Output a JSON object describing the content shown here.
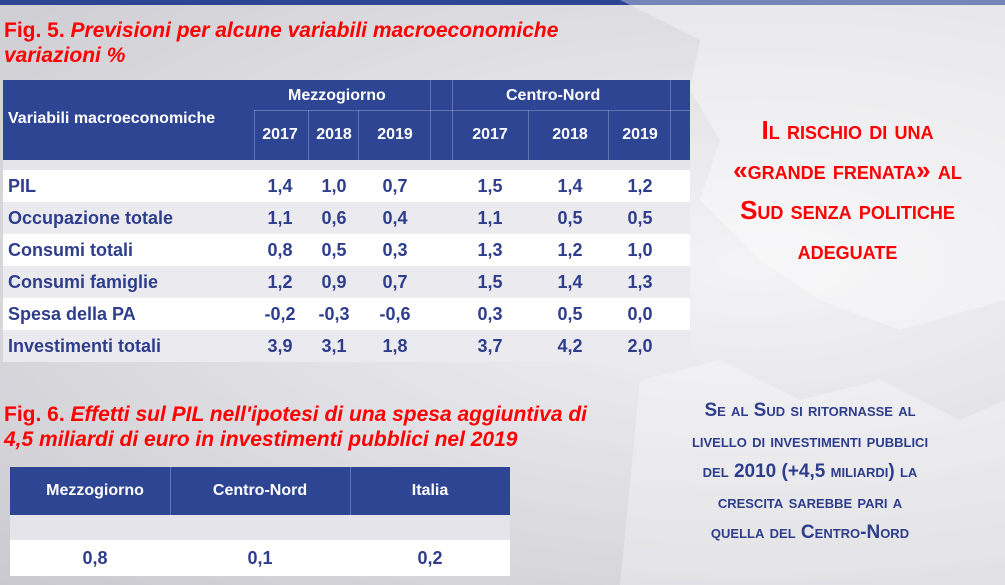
{
  "fig5": {
    "title_label": "Fig. 5.",
    "title_line1": " Previsioni per alcune variabili macroeconomiche",
    "title_line2": "variazioni  %",
    "header": {
      "variable": "Variabili macroeconomiche",
      "group1": "Mezzogiorno",
      "group2": "Centro-Nord",
      "years": [
        "2017",
        "2018",
        "2019"
      ]
    },
    "rows": [
      {
        "label": "PIL",
        "values": [
          "1,4",
          "1,0",
          "0,7",
          "1,5",
          "1,4",
          "1,2"
        ]
      },
      {
        "label": "Occupazione totale",
        "values": [
          "1,1",
          "0,6",
          "0,4",
          "1,1",
          "0,5",
          "0,5"
        ]
      },
      {
        "label": "Consumi totali",
        "values": [
          "0,8",
          "0,5",
          "0,3",
          "1,3",
          "1,2",
          "1,0"
        ]
      },
      {
        "label": "Consumi famiglie",
        "values": [
          "1,2",
          "0,9",
          "0,7",
          "1,5",
          "1,4",
          "1,3"
        ]
      },
      {
        "label": "Spesa della PA",
        "values": [
          "-0,2",
          "-0,3",
          "-0,6",
          "0,3",
          "0,5",
          "0,0"
        ]
      },
      {
        "label": "Investimenti totali",
        "values": [
          "3,9",
          "3,1",
          "1,8",
          "3,7",
          "4,2",
          "2,0"
        ]
      }
    ]
  },
  "fig6": {
    "title_label": "Fig. 6.",
    "title_line1": " Effetti sul PIL nell'ipotesi di una spesa aggiuntiva di",
    "title_line2": "4,5 miliardi di euro in investimenti pubblici nel 2019",
    "headers": [
      "Mezzogiorno",
      "Centro-Nord",
      "Italia"
    ],
    "values": [
      "0,8",
      "0,1",
      "0,2"
    ]
  },
  "callout_red": [
    "Il rischio di una",
    "«grande frenata» al",
    "Sud senza politiche",
    "adeguate"
  ],
  "callout_blue": [
    "Se al Sud si ritornasse  al",
    "livello di investimenti pubblici",
    "del 2010 (+4,5 miliardi) la",
    "crescita sarebbe pari a",
    "quella del Centro-Nord"
  ]
}
